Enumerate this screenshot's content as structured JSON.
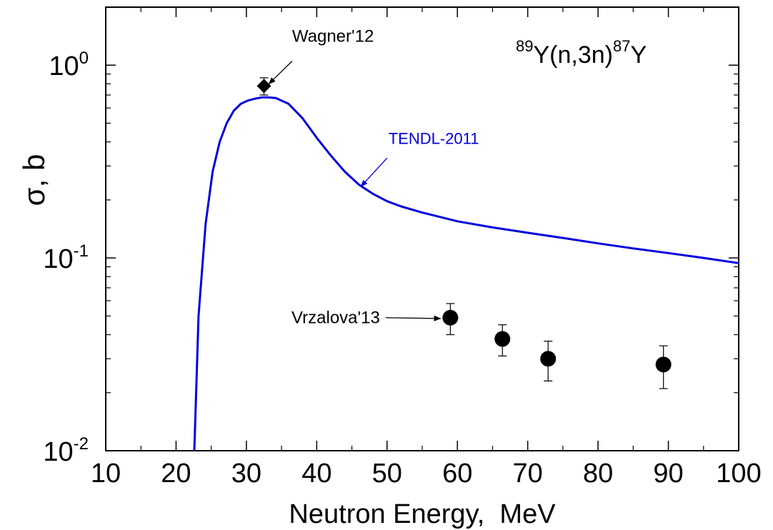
{
  "chart_data": {
    "type": "line",
    "title_reaction": {
      "a1": "89",
      "mid": "Y(n,3n)",
      "a2": "87",
      "end": "Y"
    },
    "xlabel": "Neutron Energy,  MeV",
    "ylabel": "σ, b",
    "xlim": [
      10,
      100
    ],
    "ylim": [
      0.01,
      2.0
    ],
    "yscale": "log",
    "x_ticks": [
      10,
      20,
      30,
      40,
      50,
      60,
      70,
      80,
      90,
      100
    ],
    "x_tick_labels": [
      "10",
      "20",
      "30",
      "40",
      "50",
      "60",
      "70",
      "80",
      "90",
      "100"
    ],
    "y_ticks": [
      {
        "value": 1.0,
        "base": "10",
        "exp": "0"
      },
      {
        "value": 0.1,
        "base": "10",
        "exp": "-1"
      },
      {
        "value": 0.01,
        "base": "10",
        "exp": "-2"
      }
    ],
    "grid": false,
    "series": [
      {
        "name": "TENDL-2011",
        "kind": "line",
        "color": "#0000dd",
        "x": [
          22.6,
          23.2,
          24.2,
          25.2,
          26.2,
          27.2,
          28.2,
          29.2,
          30.2,
          31.2,
          32.2,
          33.2,
          34.2,
          36.0,
          38.0,
          40.0,
          42.0,
          44.0,
          46.0,
          48.0,
          50.0,
          52.0,
          55.0,
          60.0,
          65.0,
          70.0,
          75.0,
          80.0,
          85.0,
          90.0,
          95.0,
          100.0
        ],
        "y": [
          0.01,
          0.05,
          0.15,
          0.28,
          0.4,
          0.5,
          0.58,
          0.63,
          0.655,
          0.67,
          0.68,
          0.68,
          0.675,
          0.63,
          0.53,
          0.42,
          0.34,
          0.28,
          0.24,
          0.215,
          0.197,
          0.185,
          0.172,
          0.155,
          0.144,
          0.135,
          0.127,
          0.119,
          0.112,
          0.106,
          0.1,
          0.094
        ]
      },
      {
        "name": "Wagner'12",
        "kind": "points",
        "marker": "diamond",
        "color": "#000000",
        "x": [
          32.5
        ],
        "y": [
          0.78
        ],
        "yerr_low": [
          0.7
        ],
        "yerr_high": [
          0.86
        ]
      },
      {
        "name": "Vrzalova'13",
        "kind": "points",
        "marker": "circle",
        "color": "#000000",
        "x": [
          59.0,
          66.4,
          72.9,
          89.3
        ],
        "y": [
          0.049,
          0.038,
          0.03,
          0.028
        ],
        "yerr_low": [
          0.04,
          0.031,
          0.023,
          0.021
        ],
        "yerr_high": [
          0.058,
          0.045,
          0.037,
          0.035
        ]
      }
    ],
    "annotations": [
      {
        "text": "Wagner'12",
        "target_x": 33.2,
        "target_y": 0.8,
        "arrow_from_x": 36.5,
        "arrow_from_y": 1.05,
        "label_x": 36.5,
        "label_y": 1.32
      },
      {
        "text": "TENDL-2011",
        "target_x": 46.3,
        "target_y": 0.235,
        "arrow_from_x": 50.0,
        "arrow_from_y": 0.33,
        "label_x": 50.2,
        "label_y": 0.39
      },
      {
        "text": "Vrzalova'13",
        "target_x": 57.6,
        "target_y": 0.0485,
        "arrow_from_x": 49.8,
        "arrow_from_y": 0.049,
        "label_x": 49.8,
        "label_y": 0.049
      }
    ]
  }
}
